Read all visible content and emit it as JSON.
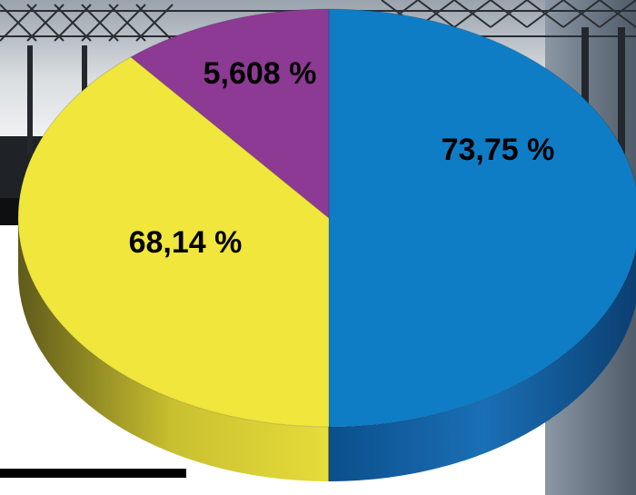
{
  "chart_data": {
    "type": "pie",
    "style": "3d",
    "slices": [
      {
        "label": "73,75 %",
        "value": 50.0,
        "color": "#0f7dc6"
      },
      {
        "label": "68,14 %",
        "value": 39.0,
        "color": "#f0e63c"
      },
      {
        "label": "5,608 %",
        "value": 11.0,
        "color": "#8d3a95"
      }
    ],
    "title": "",
    "legend": "none"
  },
  "background": {
    "description_color_sky": "#c9cdd2",
    "description_color_structure": "#1f2226"
  }
}
